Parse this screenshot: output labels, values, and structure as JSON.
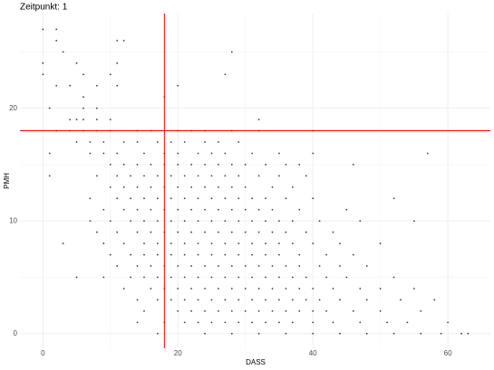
{
  "chart_data": {
    "type": "scatter",
    "title": "Zeitpunkt: 1",
    "x_label": "DASS",
    "y_label": "PMH",
    "xlim": [
      -3.4,
      66.3
    ],
    "ylim": [
      -1.3,
      28.4
    ],
    "xticks": [
      0,
      20,
      40,
      60
    ],
    "yticks": [
      0,
      10,
      20
    ],
    "xminor": [
      10,
      30,
      50
    ],
    "yminor": [
      5,
      15,
      25
    ],
    "grid": true,
    "color": "#1a1a1a",
    "hline": 18,
    "vline": 18,
    "line_color": "#ff0000",
    "x": [
      0,
      2,
      2,
      11,
      12,
      3,
      28,
      0,
      5,
      11,
      0,
      6,
      10,
      27,
      2,
      4,
      8,
      11,
      20,
      6,
      18,
      1,
      6,
      8,
      4,
      5,
      6,
      8,
      10,
      32,
      2,
      4,
      6,
      8,
      10,
      14,
      16,
      18,
      20,
      22,
      24,
      28,
      32,
      40,
      5,
      7,
      9,
      12,
      14,
      17,
      19,
      21,
      24,
      26,
      29,
      1,
      7,
      9,
      11,
      15,
      18,
      20,
      23,
      25,
      27,
      31,
      35,
      40,
      57,
      10,
      12,
      14,
      16,
      18,
      20,
      22,
      24,
      26,
      28,
      30,
      33,
      36,
      38,
      46,
      1,
      8,
      11,
      13,
      15,
      17,
      19,
      21,
      23,
      25,
      27,
      29,
      32,
      35,
      39,
      10,
      12,
      14,
      16,
      18,
      20,
      22,
      24,
      26,
      28,
      30,
      34,
      37,
      7,
      11,
      13,
      15,
      17,
      19,
      21,
      23,
      25,
      27,
      29,
      31,
      33,
      36,
      40,
      52,
      9,
      12,
      14,
      16,
      18,
      20,
      22,
      24,
      26,
      28,
      30,
      32,
      34,
      38,
      45,
      7,
      10,
      13,
      15,
      17,
      19,
      21,
      23,
      25,
      27,
      29,
      31,
      33,
      35,
      37,
      41,
      47,
      55,
      8,
      11,
      14,
      16,
      18,
      20,
      22,
      24,
      26,
      28,
      30,
      32,
      34,
      36,
      39,
      43,
      3,
      9,
      12,
      15,
      17,
      19,
      21,
      23,
      25,
      27,
      29,
      31,
      33,
      35,
      37,
      40,
      44,
      50,
      10,
      13,
      15,
      17,
      19,
      21,
      23,
      25,
      27,
      29,
      31,
      33,
      35,
      38,
      42,
      46,
      11,
      14,
      16,
      18,
      20,
      22,
      24,
      26,
      28,
      30,
      32,
      34,
      36,
      38,
      41,
      44,
      48,
      5,
      9,
      13,
      15,
      17,
      19,
      21,
      23,
      25,
      27,
      29,
      31,
      33,
      35,
      37,
      39,
      42,
      45,
      52,
      12,
      16,
      18,
      20,
      22,
      24,
      26,
      28,
      30,
      32,
      34,
      36,
      38,
      40,
      43,
      47,
      50,
      55,
      14,
      17,
      19,
      21,
      23,
      25,
      27,
      29,
      31,
      33,
      35,
      37,
      39,
      41,
      44,
      48,
      53,
      58,
      15,
      20,
      22,
      24,
      26,
      28,
      30,
      32,
      34,
      36,
      38,
      40,
      42,
      46,
      50,
      56,
      14,
      18,
      21,
      23,
      25,
      27,
      29,
      31,
      33,
      35,
      37,
      40,
      43,
      47,
      51,
      54,
      60,
      17,
      24,
      28,
      32,
      36,
      40,
      44,
      48,
      52,
      56,
      59,
      62,
      63
    ],
    "values": [
      27,
      27,
      26,
      26,
      26,
      25,
      25,
      24,
      24,
      24,
      23,
      23,
      23,
      23,
      22,
      22,
      22,
      22,
      22,
      21,
      21,
      20,
      20,
      20,
      19,
      19,
      19,
      19,
      19,
      19,
      18,
      18,
      18,
      18,
      18,
      18,
      18,
      18,
      18,
      18,
      18,
      18,
      18,
      18,
      17,
      17,
      17,
      17,
      17,
      17,
      17,
      17,
      17,
      17,
      17,
      16,
      16,
      16,
      16,
      16,
      16,
      16,
      16,
      16,
      16,
      16,
      16,
      16,
      16,
      15,
      15,
      15,
      15,
      15,
      15,
      15,
      15,
      15,
      15,
      15,
      15,
      15,
      15,
      15,
      14,
      14,
      14,
      14,
      14,
      14,
      14,
      14,
      14,
      14,
      14,
      14,
      14,
      14,
      14,
      13,
      13,
      13,
      13,
      13,
      13,
      13,
      13,
      13,
      13,
      13,
      13,
      13,
      12,
      12,
      12,
      12,
      12,
      12,
      12,
      12,
      12,
      12,
      12,
      12,
      12,
      12,
      12,
      12,
      11,
      11,
      11,
      11,
      11,
      11,
      11,
      11,
      11,
      11,
      11,
      11,
      11,
      11,
      11,
      10,
      10,
      10,
      10,
      10,
      10,
      10,
      10,
      10,
      10,
      10,
      10,
      10,
      10,
      10,
      10,
      10,
      10,
      9,
      9,
      9,
      9,
      9,
      9,
      9,
      9,
      9,
      9,
      9,
      9,
      9,
      9,
      9,
      9,
      8,
      8,
      8,
      8,
      8,
      8,
      8,
      8,
      8,
      8,
      8,
      8,
      8,
      8,
      8,
      8,
      8,
      8,
      7,
      7,
      7,
      7,
      7,
      7,
      7,
      7,
      7,
      7,
      7,
      7,
      7,
      7,
      7,
      7,
      6,
      6,
      6,
      6,
      6,
      6,
      6,
      6,
      6,
      6,
      6,
      6,
      6,
      6,
      6,
      6,
      6,
      5,
      5,
      5,
      5,
      5,
      5,
      5,
      5,
      5,
      5,
      5,
      5,
      5,
      5,
      5,
      5,
      5,
      5,
      5,
      4,
      4,
      4,
      4,
      4,
      4,
      4,
      4,
      4,
      4,
      4,
      4,
      4,
      4,
      4,
      4,
      4,
      4,
      3,
      3,
      3,
      3,
      3,
      3,
      3,
      3,
      3,
      3,
      3,
      3,
      3,
      3,
      3,
      3,
      3,
      3,
      2,
      2,
      2,
      2,
      2,
      2,
      2,
      2,
      2,
      2,
      2,
      2,
      2,
      2,
      2,
      2,
      1,
      1,
      1,
      1,
      1,
      1,
      1,
      1,
      1,
      1,
      1,
      1,
      1,
      1,
      1,
      1,
      1,
      0,
      0,
      0,
      0,
      0,
      0,
      0,
      0,
      0,
      0,
      0,
      0,
      0
    ]
  }
}
